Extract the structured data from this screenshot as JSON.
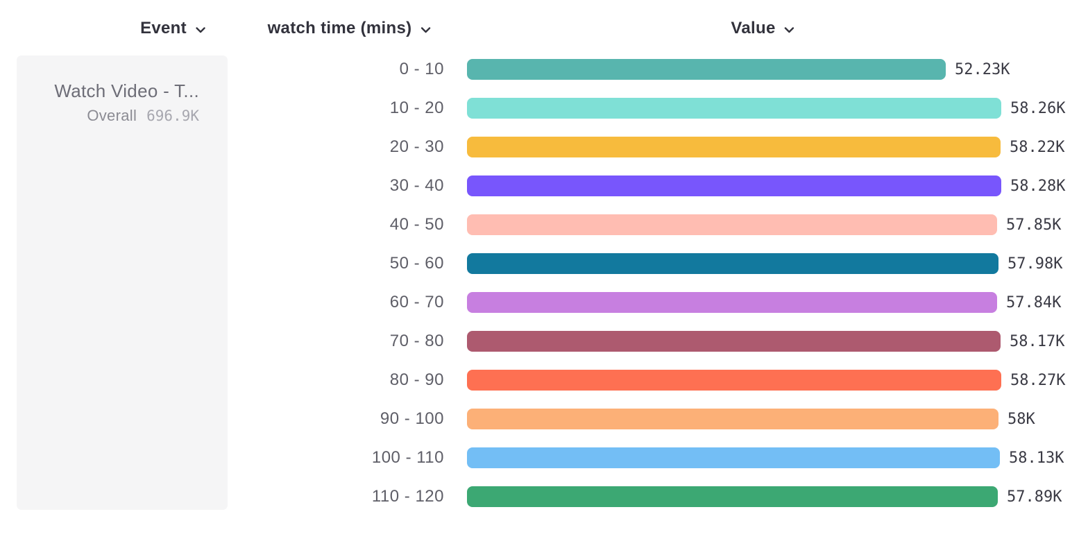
{
  "header": {
    "event_label": "Event",
    "breakdown_label": "watch time (mins)",
    "value_label": "Value"
  },
  "event_card": {
    "title": "Watch Video - T...",
    "overall_label": "Overall",
    "overall_value": "696.9K"
  },
  "chart_data": {
    "type": "bar",
    "orientation": "horizontal",
    "title": "",
    "xlabel": "Value",
    "ylabel": "watch time (mins)",
    "categories": [
      "0 - 10",
      "10 - 20",
      "20 - 30",
      "30 - 40",
      "40 - 50",
      "50 - 60",
      "60 - 70",
      "70 - 80",
      "80 - 90",
      "90 - 100",
      "100 - 110",
      "110 - 120"
    ],
    "values": [
      52.23,
      58.26,
      58.22,
      58.28,
      57.85,
      57.98,
      57.84,
      58.17,
      58.27,
      58.0,
      58.13,
      57.89
    ],
    "unit": "K",
    "value_labels": [
      "52.23K",
      "58.26K",
      "58.22K",
      "58.28K",
      "57.85K",
      "57.98K",
      "57.84K",
      "58.17K",
      "58.27K",
      "58K",
      "58.13K",
      "57.89K"
    ],
    "colors": [
      "#58b5ae",
      "#7fe0d6",
      "#f7bb3d",
      "#7856fc",
      "#ffbdb2",
      "#12799e",
      "#c77fe0",
      "#ad5a6f",
      "#fe7052",
      "#fcb077",
      "#73bef5",
      "#3ca873"
    ],
    "xlim": [
      0,
      58.28
    ],
    "grid": false,
    "legend": false
  }
}
